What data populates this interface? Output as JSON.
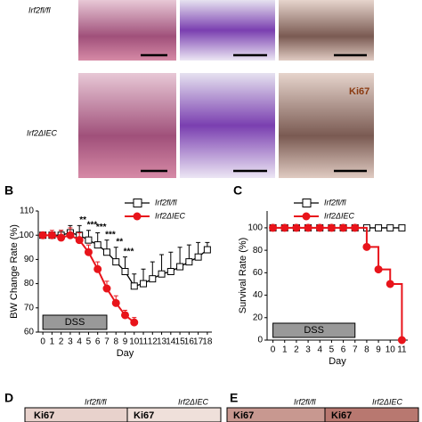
{
  "figure": {
    "panels": [
      "B",
      "C",
      "D",
      "E"
    ],
    "genotypes": [
      "Irf2fl/fl",
      "Irf2ΔIEC"
    ],
    "stain": "Ki67",
    "bottom_labels": [
      "Irf2fl/fl",
      "Irf2ΔIEC",
      "Irf2fl/fl",
      "Irf2ΔIEC"
    ],
    "bottom_stains": [
      "Ki67",
      "Ki67",
      "Ki67",
      "Ki67"
    ]
  },
  "chart_data": [
    {
      "type": "line",
      "x_label": "Day",
      "y_label": "BW Change Rate (%)",
      "x": [
        0,
        1,
        2,
        3,
        4,
        5,
        6,
        7,
        8,
        9,
        10,
        11,
        12,
        13,
        14,
        15,
        16,
        17,
        18
      ],
      "xlim": [
        -0.5,
        18.5
      ],
      "xticks": [
        0,
        1,
        2,
        3,
        4,
        5,
        6,
        7,
        8,
        9,
        10,
        11,
        12,
        13,
        14,
        15,
        16,
        17,
        18
      ],
      "ylim": [
        60,
        110
      ],
      "yticks": [
        60,
        70,
        80,
        90,
        100,
        110
      ],
      "shade": {
        "label": "DSS",
        "start": 0,
        "end": 7
      },
      "annotations": [
        "**",
        "***",
        "***",
        "***",
        "**",
        "***"
      ],
      "series": [
        {
          "name": "Irf2fl/fl",
          "color": "#000000",
          "marker": "square-open",
          "values": [
            100,
            100,
            100,
            101,
            100,
            98,
            96,
            93,
            89,
            85,
            79,
            80,
            82,
            84,
            85,
            87,
            89,
            91,
            94
          ],
          "errors": [
            1,
            1,
            2,
            3,
            4,
            4,
            5,
            5,
            6,
            6,
            5,
            6,
            7,
            8,
            8,
            8,
            7,
            6,
            3
          ]
        },
        {
          "name": "Irf2ΔIEC",
          "color": "#e8141b",
          "marker": "circle",
          "values": [
            100,
            100,
            99,
            100,
            98,
            93,
            86,
            78,
            72,
            67,
            64,
            null,
            null,
            null,
            null,
            null,
            null,
            null,
            null
          ],
          "errors": [
            1,
            2,
            3,
            3,
            3,
            3,
            3,
            3,
            3,
            2,
            2,
            null,
            null,
            null,
            null,
            null,
            null,
            null,
            null
          ]
        }
      ]
    },
    {
      "type": "line",
      "step": true,
      "x_label": "Day",
      "y_label": "Survival Rate (%)",
      "x": [
        0,
        1,
        2,
        3,
        4,
        5,
        6,
        7,
        8,
        9,
        10,
        11
      ],
      "xlim": [
        -0.5,
        11.5
      ],
      "xticks": [
        0,
        1,
        2,
        3,
        4,
        5,
        6,
        7,
        8,
        9,
        10,
        11
      ],
      "ylim": [
        0,
        115
      ],
      "yticks": [
        0,
        20,
        40,
        60,
        80,
        100
      ],
      "shade": {
        "label": "DSS",
        "start": 0,
        "end": 7
      },
      "series": [
        {
          "name": "Irf2fl/fl",
          "color": "#000000",
          "marker": "square-open",
          "values": [
            100,
            100,
            100,
            100,
            100,
            100,
            100,
            100,
            100,
            100,
            100,
            100
          ]
        },
        {
          "name": "Irf2ΔIEC",
          "color": "#e8141b",
          "marker": "circle",
          "values": [
            100,
            100,
            100,
            100,
            100,
            100,
            100,
            100,
            83,
            63,
            50,
            0
          ]
        }
      ]
    }
  ]
}
